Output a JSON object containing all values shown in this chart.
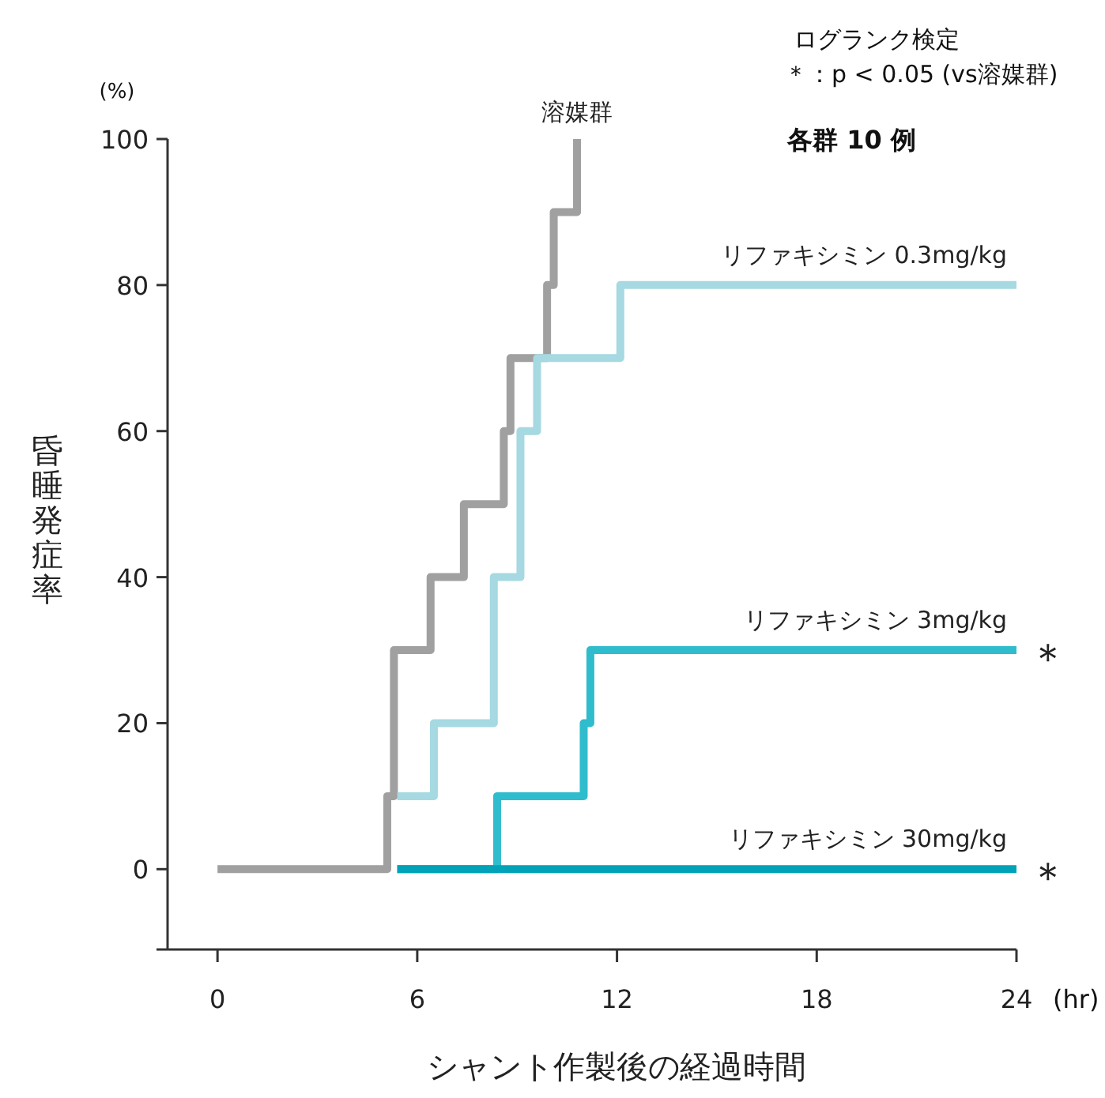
{
  "chart_data": {
    "type": "step",
    "xlabel": "シャント作製後の経過時間",
    "ylabel": "昏睡発症率",
    "xlim": [
      -1.5,
      24
    ],
    "ylim": [
      -11,
      100
    ],
    "xticks": [
      0,
      6,
      12,
      18,
      24
    ],
    "yticks": [
      0,
      20,
      40,
      60,
      80,
      100
    ],
    "series": [
      {
        "name": "溶媒群",
        "color": "#a0a0a0",
        "x": [
          0,
          5.1,
          5.3,
          6.4,
          7.4,
          8.6,
          8.8,
          9.9,
          10.1,
          10.8
        ],
        "values": [
          0,
          10,
          30,
          40,
          50,
          60,
          70,
          80,
          90,
          100
        ]
      },
      {
        "name": "リファキシミン 0.3mg/kg",
        "color": "#a6d9e1",
        "x": [
          5.4,
          6.5,
          8.3,
          9.1,
          9.6,
          12.1,
          24
        ],
        "values": [
          10,
          20,
          40,
          60,
          70,
          80,
          80
        ]
      },
      {
        "name": "リファキシミン 3mg/kg",
        "color": "#2fbccc",
        "x": [
          5.4,
          8.4,
          11.0,
          11.2,
          24
        ],
        "values": [
          0,
          10,
          20,
          30,
          30
        ]
      },
      {
        "name": "リファキシミン 30mg/kg",
        "color": "#00a2b8",
        "x": [
          5.4,
          24
        ],
        "values": [
          0,
          0
        ]
      }
    ],
    "annotations": [
      "ログランク検定",
      "＊：p < 0.05 (vs溶媒群)",
      "各群 10 例",
      "(%)",
      "(hr)",
      {
        "text": "＊",
        "x": 24,
        "y": 30
      },
      {
        "text": "＊",
        "x": 24,
        "y": 0
      }
    ],
    "grid": false,
    "legend": false,
    "marker": "none",
    "line_style": "solid"
  }
}
